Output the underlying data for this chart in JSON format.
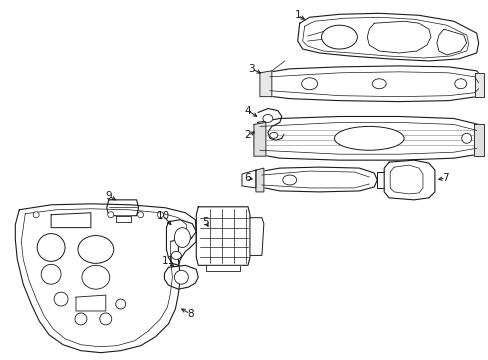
{
  "background_color": "#ffffff",
  "line_color": "#1a1a1a",
  "line_width": 0.8,
  "label_fontsize": 7.5,
  "fig_width": 4.89,
  "fig_height": 3.6,
  "dpi": 100
}
